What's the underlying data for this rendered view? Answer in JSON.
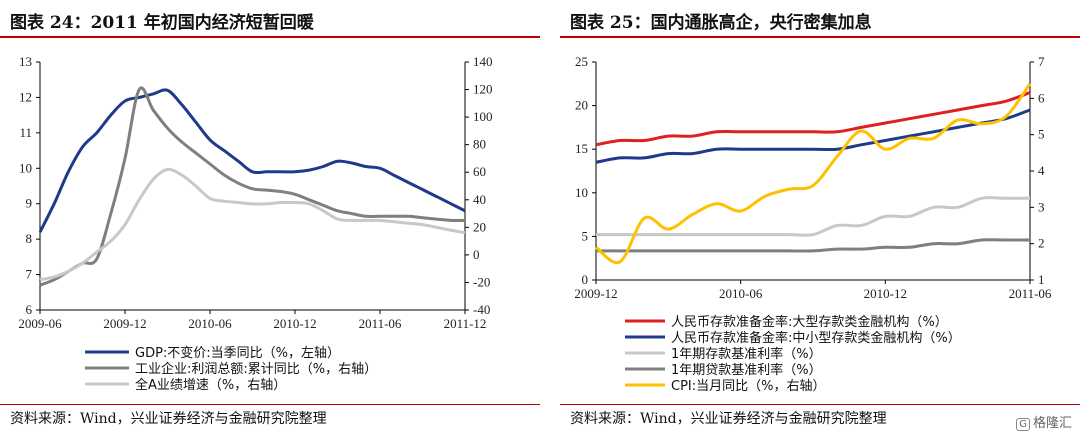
{
  "left": {
    "title": "图表 24：2011 年初国内经济短暂回暖",
    "source": "资料来源：Wind，兴业证券经济与金融研究院整理",
    "chart_data": {
      "type": "line",
      "x_labels": [
        "2009-06",
        "2009-12",
        "2010-06",
        "2010-12",
        "2011-06",
        "2011-12"
      ],
      "x": [
        "2009-06",
        "2009-07",
        "2009-08",
        "2009-09",
        "2009-10",
        "2009-11",
        "2009-12",
        "2010-01",
        "2010-02",
        "2010-03",
        "2010-04",
        "2010-05",
        "2010-06",
        "2010-07",
        "2010-08",
        "2010-09",
        "2010-10",
        "2010-11",
        "2010-12",
        "2011-01",
        "2011-02",
        "2011-03",
        "2011-04",
        "2011-05",
        "2011-06",
        "2011-07",
        "2011-08",
        "2011-09",
        "2011-10",
        "2011-11",
        "2011-12"
      ],
      "ylim_left": [
        6,
        13
      ],
      "yticks_left": [
        6,
        7,
        8,
        9,
        10,
        11,
        12,
        13
      ],
      "ylim_right": [
        -40,
        140
      ],
      "yticks_right": [
        -40,
        -20,
        0,
        20,
        40,
        60,
        80,
        100,
        120,
        140
      ],
      "series": [
        {
          "name": "GDP:不变价:当季同比（%，左轴）",
          "color": "#1f3a8a",
          "axis": "left",
          "values": [
            8.2,
            9.0,
            9.9,
            10.6,
            11.0,
            11.5,
            11.9,
            12.0,
            12.1,
            12.2,
            11.8,
            11.3,
            10.8,
            10.5,
            10.2,
            9.9,
            9.9,
            9.9,
            9.9,
            9.95,
            10.05,
            10.2,
            10.15,
            10.05,
            10.0,
            9.8,
            9.6,
            9.4,
            9.2,
            9.0,
            8.8
          ]
        },
        {
          "name": "工业企业:利润总额:累计同比（%，右轴）",
          "color": "#7f7f7f",
          "axis": "right",
          "values": [
            -22,
            -18,
            -12,
            -6,
            -3,
            30,
            70,
            120,
            105,
            92,
            82,
            74,
            66,
            58,
            52,
            48,
            47,
            46,
            44,
            40,
            36,
            32,
            30,
            28,
            28,
            28,
            28,
            27,
            26,
            25,
            25
          ]
        },
        {
          "name": "全A业绩增速（%，右轴）",
          "color": "#c8c8c8",
          "axis": "right",
          "values": [
            -18,
            -16,
            -12,
            -6,
            2,
            10,
            22,
            40,
            55,
            62,
            58,
            50,
            41,
            39,
            38,
            37,
            37,
            38,
            38,
            37,
            32,
            26,
            25,
            25,
            25,
            24,
            23,
            22,
            20,
            18,
            16
          ]
        }
      ]
    }
  },
  "right": {
    "title": "图表 25：国内通胀高企，央行密集加息",
    "source": "资料来源：Wind，兴业证券经济与金融研究院整理",
    "watermark": "格隆汇",
    "watermark_icon": "G",
    "chart_data": {
      "type": "line",
      "x_labels": [
        "2009-12",
        "2010-06",
        "2010-12",
        "2011-06"
      ],
      "x": [
        "2009-12",
        "2010-01",
        "2010-02",
        "2010-03",
        "2010-04",
        "2010-05",
        "2010-06",
        "2010-07",
        "2010-08",
        "2010-09",
        "2010-10",
        "2010-11",
        "2010-12",
        "2011-01",
        "2011-02",
        "2011-03",
        "2011-04",
        "2011-05",
        "2011-06"
      ],
      "ylim_left": [
        0,
        25
      ],
      "yticks_left": [
        0,
        5,
        10,
        15,
        20,
        25
      ],
      "ylim_right": [
        1,
        7
      ],
      "yticks_right": [
        1,
        2,
        3,
        4,
        5,
        6,
        7
      ],
      "series": [
        {
          "name": "人民币存款准备金率:大型存款类金融机构（%）",
          "color": "#e02020",
          "axis": "left",
          "values": [
            15.5,
            16,
            16,
            16.5,
            16.5,
            17,
            17,
            17,
            17,
            17,
            17,
            17.5,
            18,
            18.5,
            19,
            19.5,
            20,
            20.5,
            21.5
          ]
        },
        {
          "name": "人民币存款准备金率:中小型存款类金融机构（%）",
          "color": "#1f3a8a",
          "axis": "left",
          "values": [
            13.5,
            14,
            14,
            14.5,
            14.5,
            15,
            15,
            15,
            15,
            15,
            15,
            15.5,
            16,
            16.5,
            17,
            17.5,
            18,
            18.5,
            19.5
          ]
        },
        {
          "name": "1年期存款基准利率（%）",
          "color": "#c8c8c8",
          "axis": "right",
          "values": [
            2.25,
            2.25,
            2.25,
            2.25,
            2.25,
            2.25,
            2.25,
            2.25,
            2.25,
            2.25,
            2.5,
            2.5,
            2.75,
            2.75,
            3.0,
            3.0,
            3.25,
            3.25,
            3.25
          ]
        },
        {
          "name": "1年期贷款基准利率（%）",
          "color": "#7f7f7f",
          "axis": "right",
          "values": [
            1.8,
            1.8,
            1.8,
            1.8,
            1.8,
            1.8,
            1.8,
            1.8,
            1.8,
            1.8,
            1.85,
            1.85,
            1.9,
            1.9,
            2.0,
            2.0,
            2.1,
            2.1,
            2.1
          ]
        },
        {
          "name": "CPI:当月同比（%，右轴）",
          "color": "#ffc000",
          "axis": "right",
          "values": [
            1.9,
            1.5,
            2.7,
            2.4,
            2.8,
            3.1,
            2.9,
            3.3,
            3.5,
            3.6,
            4.4,
            5.1,
            4.6,
            4.9,
            4.9,
            5.4,
            5.3,
            5.5,
            6.4
          ]
        }
      ]
    }
  }
}
